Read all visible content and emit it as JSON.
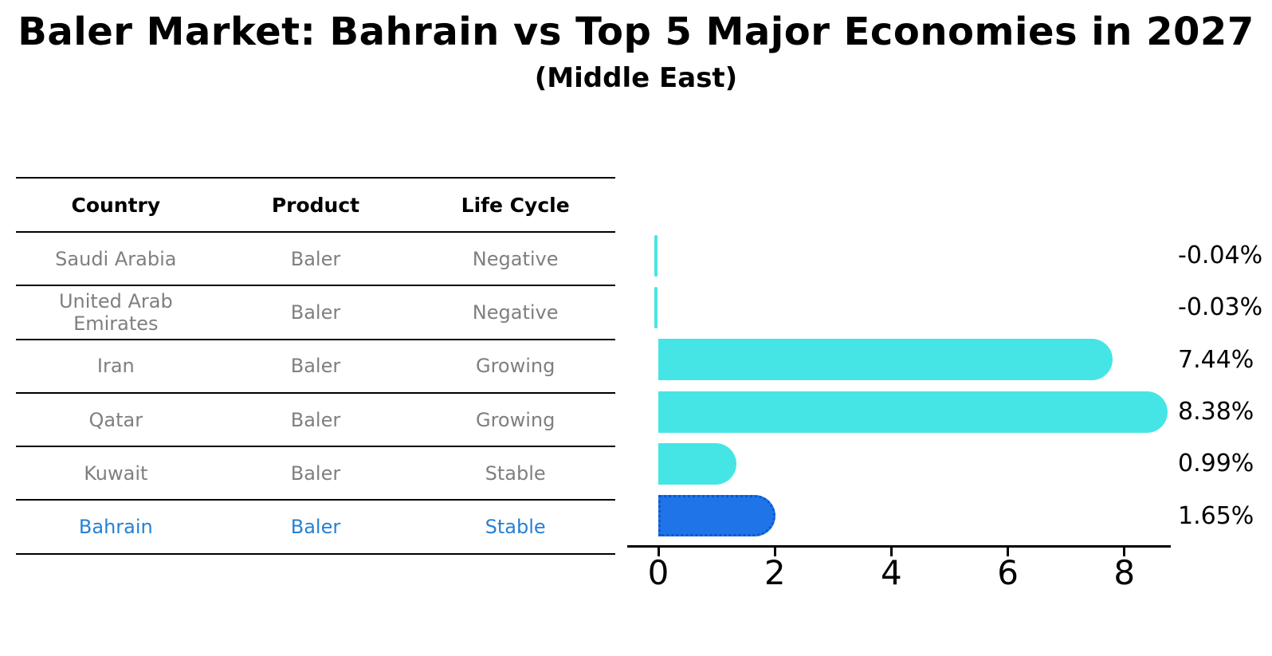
{
  "title": "Baler Market: Bahrain vs Top 5 Major Economies in 2027",
  "subtitle": "(Middle East)",
  "table": {
    "headers": [
      "Country",
      "Product",
      "Life Cycle"
    ],
    "rows": [
      {
        "country": "Saudi Arabia",
        "product": "Baler",
        "life_cycle": "Negative",
        "highlight": false
      },
      {
        "country": "United Arab Emirates",
        "product": "Baler",
        "life_cycle": "Negative",
        "highlight": false
      },
      {
        "country": "Iran",
        "product": "Baler",
        "life_cycle": "Growing",
        "highlight": false
      },
      {
        "country": "Qatar",
        "product": "Baler",
        "life_cycle": "Growing",
        "highlight": false
      },
      {
        "country": "Kuwait",
        "product": "Baler",
        "life_cycle": "Stable",
        "highlight": false
      },
      {
        "country": "Bahrain",
        "product": "Baler",
        "life_cycle": "Stable",
        "highlight": true
      }
    ]
  },
  "chart_data": {
    "type": "bar",
    "orientation": "horizontal",
    "title": "Baler Market: Bahrain vs Top 5 Major Economies in 2027 (Middle East)",
    "categories": [
      "Saudi Arabia",
      "United Arab Emirates",
      "Iran",
      "Qatar",
      "Kuwait",
      "Bahrain"
    ],
    "values": [
      -0.04,
      -0.03,
      7.44,
      8.38,
      0.99,
      1.65
    ],
    "value_labels": [
      "-0.04%",
      "-0.03%",
      "7.44%",
      "8.38%",
      "0.99%",
      "1.65%"
    ],
    "x_ticks": [
      "0",
      "2",
      "4",
      "6",
      "8"
    ],
    "xlim": [
      -0.53,
      8.8
    ],
    "grid": false,
    "legend": false,
    "highlight_index": 5
  },
  "colors": {
    "bar_cyan": "#46E5E5",
    "bar_blue": "#1F74E8",
    "bar_blue_border": "#0A58D0",
    "highlight_text": "#2580D5",
    "table_text": "#7f7f7f",
    "header_text": "#000000",
    "axis": "#000000",
    "background": "#ffffff"
  }
}
